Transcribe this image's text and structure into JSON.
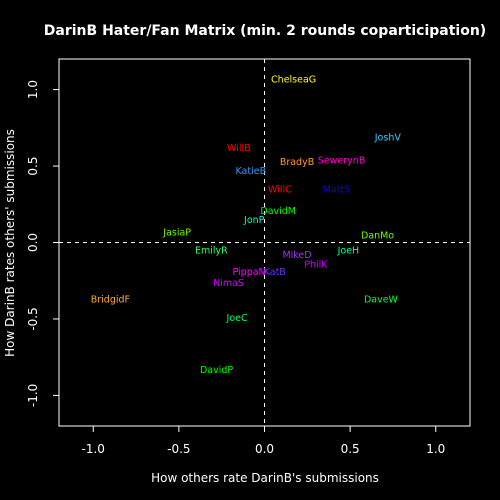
{
  "chart_data": {
    "type": "scatter",
    "title": "DarinB Hater/Fan Matrix (min. 2 rounds coparticipation)",
    "xlabel": "How others rate DarinB's submissions",
    "ylabel": "How DarinB rates others' submissions",
    "xlim": [
      -1.2,
      1.2
    ],
    "ylim": [
      -1.2,
      1.2
    ],
    "xticks": [
      "-1.0",
      "-0.5",
      "0.0",
      "0.5",
      "1.0"
    ],
    "xtick_values": [
      -1.0,
      -0.5,
      0.0,
      0.5,
      1.0
    ],
    "yticks": [
      "-1.0",
      "-0.5",
      "0.0",
      "0.5",
      "1.0"
    ],
    "ytick_values": [
      -1.0,
      -0.5,
      0.0,
      0.5,
      1.0
    ],
    "reference_lines": {
      "x": 0,
      "y": 0,
      "style": "dashed"
    },
    "points": [
      {
        "label": "ChelseaG",
        "x": 0.17,
        "y": 1.07,
        "color": "#ffff00"
      },
      {
        "label": "JoshV",
        "x": 0.72,
        "y": 0.69,
        "color": "#33ccff"
      },
      {
        "label": "WillB",
        "x": -0.15,
        "y": 0.62,
        "color": "#ff0000"
      },
      {
        "label": "BradyB",
        "x": 0.19,
        "y": 0.53,
        "color": "#ff9933"
      },
      {
        "label": "SewerynB",
        "x": 0.45,
        "y": 0.54,
        "color": "#ff00cc"
      },
      {
        "label": "KatieB",
        "x": -0.08,
        "y": 0.47,
        "color": "#3399ff"
      },
      {
        "label": "WillC",
        "x": 0.09,
        "y": 0.35,
        "color": "#ff0000"
      },
      {
        "label": "MattS",
        "x": 0.42,
        "y": 0.35,
        "color": "#0000ff"
      },
      {
        "label": "DavidM",
        "x": 0.08,
        "y": 0.21,
        "color": "#00ff00"
      },
      {
        "label": "JonP",
        "x": -0.06,
        "y": 0.15,
        "color": "#00ffcc"
      },
      {
        "label": "JasiaP",
        "x": -0.51,
        "y": 0.07,
        "color": "#66ff00"
      },
      {
        "label": "DanMo",
        "x": 0.66,
        "y": 0.05,
        "color": "#66ff00"
      },
      {
        "label": "EmilyR",
        "x": -0.31,
        "y": -0.05,
        "color": "#33ff66"
      },
      {
        "label": "JoeH",
        "x": 0.49,
        "y": -0.05,
        "color": "#00ff99"
      },
      {
        "label": "MikeD",
        "x": 0.19,
        "y": -0.08,
        "color": "#9933ff"
      },
      {
        "label": "PhilK",
        "x": 0.3,
        "y": -0.14,
        "color": "#cc00ff"
      },
      {
        "label": "PippaN",
        "x": -0.09,
        "y": -0.19,
        "color": "#ff00ff"
      },
      {
        "label": "KatB",
        "x": 0.06,
        "y": -0.19,
        "color": "#6633ff"
      },
      {
        "label": "NimaS",
        "x": -0.21,
        "y": -0.26,
        "color": "#cc00ff"
      },
      {
        "label": "BridgidF",
        "x": -0.9,
        "y": -0.37,
        "color": "#ffaa33"
      },
      {
        "label": "DaveW",
        "x": 0.68,
        "y": -0.37,
        "color": "#00ff33"
      },
      {
        "label": "JoeC",
        "x": -0.16,
        "y": -0.49,
        "color": "#00ff66"
      },
      {
        "label": "DavidP",
        "x": -0.28,
        "y": -0.83,
        "color": "#00ff00"
      }
    ]
  }
}
